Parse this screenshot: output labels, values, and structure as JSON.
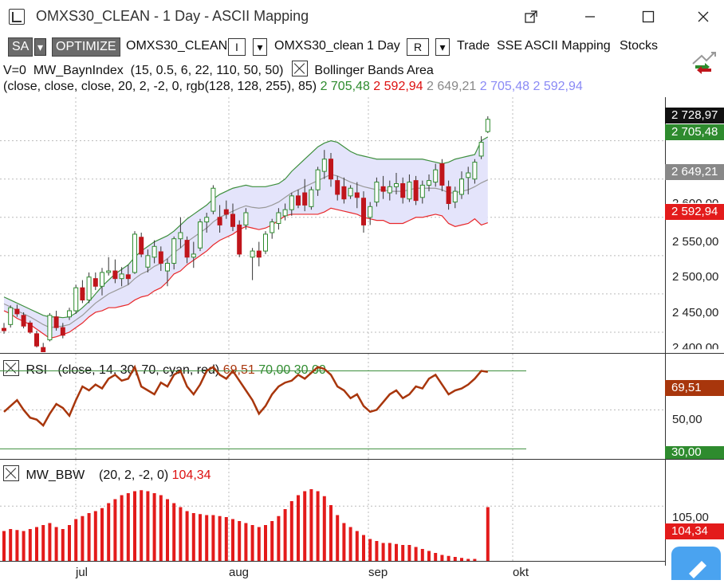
{
  "window": {
    "title": "OMXS30_CLEAN - 1 Day - ASCII Mapping"
  },
  "toolbar": {
    "sa": "SA",
    "optimize": "OPTIMIZE",
    "symbol": "OMXS30_CLEAN",
    "box1": "I",
    "symbol2": "OMXS30_clean",
    "interval": "1 Day",
    "box2": "R",
    "trade": "Trade",
    "exchange": "SSE",
    "mapping": "ASCII Mapping",
    "stocks": "Stocks"
  },
  "indicators": {
    "line1_prefix": "V=0",
    "line1_name": "MW_BaynIndex",
    "line1_params": "(15,  0.5,  6,  22,  110,  50,  50)",
    "bb_name": "Bollinger Bands Area",
    "bb_params": "(close,  close,  close,  20,  2,  -2,  0,  rgb(128, 128, 255),  85)",
    "bb_v1": "2 705,48",
    "bb_v2": "2 592,94",
    "bb_v3": "2 649,21",
    "bb_v4": "2 705,48",
    "bb_v5": "2 592,94"
  },
  "price_axis": {
    "ticks": [
      "2 550,00",
      "2 500,00",
      "2 450,00",
      "2 400,00"
    ],
    "partial": "2 600,00",
    "last": "2 728,97",
    "upper": "2 705,48",
    "middle": "2 649,21",
    "lower": "2 592,94"
  },
  "rsi": {
    "name": "RSI",
    "params": "(close,  14,  30,  70,  cyan,  red)",
    "value": "69,51",
    "upper": "70,00",
    "lower": "30,00",
    "axis_value": "69,51",
    "axis_mid": "50,00",
    "axis_low": "30,00"
  },
  "bbw": {
    "name": "MW_BBW",
    "params": "(20,  2,  -2,  0)",
    "value": "104,34",
    "axis_tick": "105,00",
    "axis_value": "104,34"
  },
  "dates": [
    "jul",
    "aug",
    "sep",
    "okt"
  ],
  "colors": {
    "up": "#2e8b2e",
    "down": "#c0151b",
    "band_fill": "#e4e4fb",
    "rsi_line": "#a8360c",
    "bbw_bar": "#e31b1b"
  },
  "chart_data": {
    "type": "candlestick",
    "candles": [
      [
        2455,
        2462,
        2448,
        2452
      ],
      [
        2460,
        2485,
        2456,
        2482
      ],
      [
        2480,
        2486,
        2470,
        2474
      ],
      [
        2472,
        2476,
        2455,
        2458
      ],
      [
        2462,
        2465,
        2448,
        2450
      ],
      [
        2448,
        2452,
        2430,
        2432
      ],
      [
        2430,
        2436,
        2412,
        2418
      ],
      [
        2440,
        2475,
        2438,
        2472
      ],
      [
        2470,
        2478,
        2452,
        2456
      ],
      [
        2456,
        2462,
        2442,
        2446
      ],
      [
        2470,
        2482,
        2466,
        2478
      ],
      [
        2478,
        2512,
        2474,
        2508
      ],
      [
        2508,
        2518,
        2488,
        2492
      ],
      [
        2492,
        2528,
        2488,
        2522
      ],
      [
        2520,
        2528,
        2505,
        2510
      ],
      [
        2510,
        2534,
        2498,
        2528
      ],
      [
        2528,
        2548,
        2524,
        2530
      ],
      [
        2530,
        2545,
        2514,
        2520
      ],
      [
        2520,
        2535,
        2510,
        2526
      ],
      [
        2525,
        2538,
        2512,
        2520
      ],
      [
        2528,
        2582,
        2526,
        2578
      ],
      [
        2574,
        2580,
        2548,
        2552
      ],
      [
        2535,
        2558,
        2528,
        2550
      ],
      [
        2548,
        2570,
        2540,
        2562
      ],
      [
        2555,
        2562,
        2530,
        2540
      ],
      [
        2530,
        2546,
        2510,
        2540
      ],
      [
        2540,
        2575,
        2532,
        2572
      ],
      [
        2572,
        2600,
        2560,
        2580
      ],
      [
        2570,
        2575,
        2540,
        2548
      ],
      [
        2548,
        2568,
        2534,
        2552
      ],
      [
        2560,
        2598,
        2556,
        2594
      ],
      [
        2594,
        2606,
        2580,
        2600
      ],
      [
        2608,
        2642,
        2604,
        2638
      ],
      [
        2600,
        2616,
        2580,
        2590
      ],
      [
        2610,
        2622,
        2598,
        2604
      ],
      [
        2604,
        2618,
        2582,
        2588
      ],
      [
        2590,
        2596,
        2548,
        2552
      ],
      [
        2590,
        2612,
        2584,
        2606
      ],
      [
        2548,
        2560,
        2518,
        2556
      ],
      [
        2556,
        2568,
        2536,
        2548
      ],
      [
        2556,
        2582,
        2552,
        2578
      ],
      [
        2580,
        2598,
        2572,
        2594
      ],
      [
        2592,
        2612,
        2584,
        2606
      ],
      [
        2602,
        2618,
        2596,
        2610
      ],
      [
        2610,
        2632,
        2602,
        2628
      ],
      [
        2628,
        2636,
        2612,
        2616
      ],
      [
        2632,
        2650,
        2608,
        2616
      ],
      [
        2614,
        2640,
        2610,
        2636
      ],
      [
        2636,
        2666,
        2628,
        2662
      ],
      [
        2660,
        2688,
        2650,
        2676
      ],
      [
        2676,
        2684,
        2640,
        2650
      ],
      [
        2648,
        2654,
        2622,
        2630
      ],
      [
        2640,
        2652,
        2618,
        2624
      ],
      [
        2628,
        2642,
        2624,
        2638
      ],
      [
        2632,
        2646,
        2612,
        2626
      ],
      [
        2625,
        2634,
        2580,
        2590
      ],
      [
        2600,
        2620,
        2590,
        2614
      ],
      [
        2620,
        2652,
        2614,
        2646
      ],
      [
        2640,
        2654,
        2624,
        2634
      ],
      [
        2632,
        2648,
        2622,
        2640
      ],
      [
        2640,
        2658,
        2630,
        2644
      ],
      [
        2644,
        2652,
        2618,
        2626
      ],
      [
        2624,
        2656,
        2620,
        2646
      ],
      [
        2648,
        2654,
        2616,
        2622
      ],
      [
        2626,
        2648,
        2618,
        2642
      ],
      [
        2642,
        2656,
        2634,
        2648
      ],
      [
        2646,
        2670,
        2640,
        2662
      ],
      [
        2670,
        2676,
        2634,
        2642
      ],
      [
        2640,
        2648,
        2610,
        2618
      ],
      [
        2620,
        2640,
        2612,
        2634
      ],
      [
        2630,
        2660,
        2624,
        2650
      ],
      [
        2652,
        2666,
        2630,
        2658
      ],
      [
        2650,
        2676,
        2644,
        2672
      ],
      [
        2680,
        2706,
        2676,
        2698
      ],
      [
        2712,
        2732,
        2710,
        2728
      ]
    ],
    "upper_band": [
      2496,
      2492,
      2488,
      2484,
      2480,
      2476,
      2472,
      2470,
      2470,
      2469,
      2470,
      2475,
      2482,
      2490,
      2500,
      2510,
      2518,
      2526,
      2532,
      2538,
      2548,
      2556,
      2562,
      2568,
      2572,
      2576,
      2582,
      2590,
      2598,
      2604,
      2610,
      2616,
      2624,
      2630,
      2634,
      2638,
      2640,
      2642,
      2640,
      2640,
      2640,
      2642,
      2644,
      2650,
      2660,
      2668,
      2676,
      2684,
      2692,
      2697,
      2700,
      2698,
      2692,
      2686,
      2682,
      2680,
      2678,
      2676,
      2676,
      2676,
      2676,
      2676,
      2676,
      2676,
      2676,
      2674,
      2672,
      2670,
      2672,
      2676,
      2678,
      2680,
      2682,
      2700,
      2705
    ],
    "middle_band": [
      2487,
      2483,
      2478,
      2474,
      2470,
      2465,
      2460,
      2456,
      2457,
      2458,
      2460,
      2466,
      2472,
      2480,
      2488,
      2494,
      2500,
      2504,
      2508,
      2512,
      2520,
      2526,
      2530,
      2536,
      2540,
      2546,
      2554,
      2560,
      2568,
      2574,
      2580,
      2586,
      2594,
      2600,
      2604,
      2608,
      2612,
      2615,
      2613,
      2612,
      2613,
      2616,
      2620,
      2626,
      2632,
      2636,
      2640,
      2644,
      2648,
      2652,
      2656,
      2654,
      2650,
      2646,
      2643,
      2640,
      2638,
      2636,
      2636,
      2634,
      2634,
      2634,
      2636,
      2638,
      2638,
      2638,
      2638,
      2636,
      2632,
      2632,
      2634,
      2636,
      2640,
      2645,
      2649
    ],
    "lower_band": [
      2478,
      2474,
      2468,
      2464,
      2460,
      2454,
      2448,
      2442,
      2444,
      2447,
      2450,
      2456,
      2462,
      2470,
      2476,
      2478,
      2482,
      2482,
      2484,
      2486,
      2492,
      2496,
      2498,
      2504,
      2508,
      2516,
      2526,
      2530,
      2538,
      2544,
      2550,
      2556,
      2564,
      2570,
      2574,
      2578,
      2584,
      2588,
      2586,
      2584,
      2586,
      2590,
      2596,
      2602,
      2604,
      2604,
      2604,
      2604,
      2604,
      2607,
      2612,
      2610,
      2608,
      2606,
      2604,
      2600,
      2598,
      2596,
      2596,
      2592,
      2592,
      2592,
      2596,
      2600,
      2600,
      2602,
      2604,
      2602,
      2592,
      2588,
      2590,
      2592,
      2598,
      2590,
      2593
    ],
    "rsi": [
      49,
      52,
      55,
      50,
      46,
      45,
      42,
      48,
      53,
      51,
      47,
      55,
      62,
      60,
      63,
      61,
      66,
      68,
      65,
      66,
      72,
      62,
      60,
      58,
      64,
      62,
      68,
      70,
      62,
      58,
      63,
      70,
      72,
      68,
      66,
      70,
      65,
      60,
      55,
      48,
      52,
      58,
      62,
      64,
      65,
      68,
      66,
      69,
      72,
      71,
      68,
      62,
      60,
      56,
      58,
      52,
      49,
      50,
      54,
      58,
      60,
      56,
      58,
      62,
      61,
      66,
      68,
      63,
      58,
      60,
      61,
      63,
      66,
      70,
      69.5
    ],
    "rsi_levels": [
      30,
      70
    ],
    "bbw": [
      80,
      82,
      81,
      80,
      82,
      84,
      86,
      88,
      84,
      82,
      86,
      92,
      95,
      98,
      100,
      103,
      108,
      112,
      116,
      118,
      120,
      121,
      120,
      118,
      116,
      112,
      108,
      104,
      100,
      98,
      97,
      96,
      96,
      95,
      94,
      92,
      90,
      88,
      86,
      84,
      86,
      90,
      95,
      102,
      110,
      116,
      120,
      122,
      120,
      115,
      106,
      96,
      88,
      84,
      80,
      76,
      72,
      70,
      68,
      68,
      67,
      66,
      66,
      64,
      62,
      60,
      58,
      56,
      55,
      54,
      53,
      52,
      52,
      50,
      104
    ],
    "price_ylim": [
      2400,
      2760
    ],
    "rsi_ylim": [
      24,
      78
    ],
    "bbw_ylim": [
      50,
      130
    ]
  }
}
